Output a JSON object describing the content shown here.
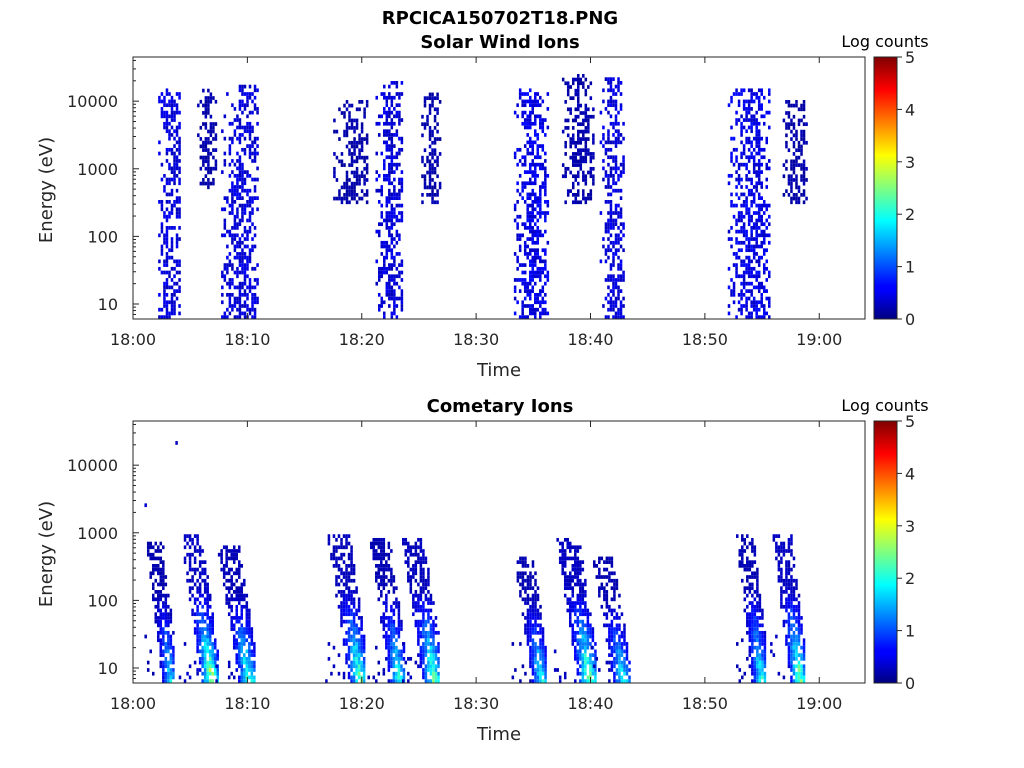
{
  "figure_title": "RPCICA150702T18.PNG",
  "chart_data": [
    {
      "type": "heatmap",
      "title": "Solar Wind Ions",
      "xlabel": "Time",
      "ylabel": "Energy (eV)",
      "y_scale": "log",
      "xlim_minutes": [
        0,
        64
      ],
      "ylim": [
        6,
        45000
      ],
      "x_ticks": [
        "18:00",
        "18:10",
        "18:20",
        "18:30",
        "18:40",
        "18:50",
        "19:00"
      ],
      "y_ticks": [
        "10",
        "100",
        "1000",
        "10000"
      ],
      "colorbar": {
        "label": "Log counts",
        "range": [
          0,
          5
        ],
        "ticks": [
          "0",
          "1",
          "2",
          "3",
          "4",
          "5"
        ],
        "colormap": "jet"
      },
      "grid": false,
      "bursts": [
        {
          "t_start_min": 2.2,
          "t_end_min": 4.1,
          "e_min_eV": 6,
          "e_max_eV": 14000,
          "peak_log_counts": 0.6
        },
        {
          "t_start_min": 5.6,
          "t_end_min": 7.2,
          "e_min_eV": 500,
          "e_max_eV": 14000,
          "peak_log_counts": 0.3
        },
        {
          "t_start_min": 7.7,
          "t_end_min": 10.8,
          "e_min_eV": 6,
          "e_max_eV": 16000,
          "peak_log_counts": 0.6
        },
        {
          "t_start_min": 17.5,
          "t_end_min": 20.5,
          "e_min_eV": 300,
          "e_max_eV": 10000,
          "peak_log_counts": 0.3
        },
        {
          "t_start_min": 21.2,
          "t_end_min": 23.6,
          "e_min_eV": 6,
          "e_max_eV": 19000,
          "peak_log_counts": 0.6
        },
        {
          "t_start_min": 25.2,
          "t_end_min": 26.8,
          "e_min_eV": 300,
          "e_max_eV": 12000,
          "peak_log_counts": 0.3
        },
        {
          "t_start_min": 33.3,
          "t_end_min": 36.3,
          "e_min_eV": 6,
          "e_max_eV": 14000,
          "peak_log_counts": 0.7
        },
        {
          "t_start_min": 37.5,
          "t_end_min": 40.2,
          "e_min_eV": 300,
          "e_max_eV": 25000,
          "peak_log_counts": 0.3
        },
        {
          "t_start_min": 40.8,
          "t_end_min": 42.8,
          "e_min_eV": 6,
          "e_max_eV": 22000,
          "peak_log_counts": 0.6
        },
        {
          "t_start_min": 52.0,
          "t_end_min": 55.6,
          "e_min_eV": 6,
          "e_max_eV": 14000,
          "peak_log_counts": 0.7
        },
        {
          "t_start_min": 56.8,
          "t_end_min": 58.8,
          "e_min_eV": 300,
          "e_max_eV": 10000,
          "peak_log_counts": 0.3
        }
      ]
    },
    {
      "type": "heatmap",
      "title": "Cometary Ions",
      "xlabel": "Time",
      "ylabel": "Energy (eV)",
      "y_scale": "log",
      "xlim_minutes": [
        0,
        64
      ],
      "ylim": [
        6,
        45000
      ],
      "x_ticks": [
        "18:00",
        "18:10",
        "18:20",
        "18:30",
        "18:40",
        "18:50",
        "19:00"
      ],
      "y_ticks": [
        "10",
        "100",
        "1000",
        "10000"
      ],
      "colorbar": {
        "label": "Log counts",
        "range": [
          0,
          5
        ],
        "ticks": [
          "0",
          "1",
          "2",
          "3",
          "4",
          "5"
        ],
        "colormap": "jet"
      },
      "grid": false,
      "bursts": [
        {
          "t_start_min": 1.0,
          "t_end_min": 3.6,
          "e_min_eV": 6,
          "e_max_eV": 700,
          "peak_log_counts": 2.0
        },
        {
          "t_start_min": 4.0,
          "t_end_min": 7.3,
          "e_min_eV": 6,
          "e_max_eV": 900,
          "peak_log_counts": 3.0
        },
        {
          "t_start_min": 7.2,
          "t_end_min": 10.6,
          "e_min_eV": 6,
          "e_max_eV": 600,
          "peak_log_counts": 2.5
        },
        {
          "t_start_min": 16.8,
          "t_end_min": 20.3,
          "e_min_eV": 6,
          "e_max_eV": 900,
          "peak_log_counts": 2.6
        },
        {
          "t_start_min": 20.5,
          "t_end_min": 23.7,
          "e_min_eV": 6,
          "e_max_eV": 800,
          "peak_log_counts": 2.3
        },
        {
          "t_start_min": 23.3,
          "t_end_min": 26.8,
          "e_min_eV": 6,
          "e_max_eV": 800,
          "peak_log_counts": 2.7
        },
        {
          "t_start_min": 33.1,
          "t_end_min": 36.1,
          "e_min_eV": 6,
          "e_max_eV": 500,
          "peak_log_counts": 2.2
        },
        {
          "t_start_min": 36.8,
          "t_end_min": 40.4,
          "e_min_eV": 6,
          "e_max_eV": 800,
          "peak_log_counts": 2.8
        },
        {
          "t_start_min": 40.0,
          "t_end_min": 43.3,
          "e_min_eV": 6,
          "e_max_eV": 400,
          "peak_log_counts": 2.2
        },
        {
          "t_start_min": 52.5,
          "t_end_min": 55.3,
          "e_min_eV": 6,
          "e_max_eV": 900,
          "peak_log_counts": 2.3
        },
        {
          "t_start_min": 55.7,
          "t_end_min": 58.7,
          "e_min_eV": 6,
          "e_max_eV": 900,
          "peak_log_counts": 2.8
        }
      ],
      "outliers": [
        {
          "t_min": 3.7,
          "e_eV": 20000,
          "log_counts": 0.3
        },
        {
          "t_min": 1.0,
          "e_eV": 2400,
          "log_counts": 0.4
        }
      ]
    }
  ]
}
